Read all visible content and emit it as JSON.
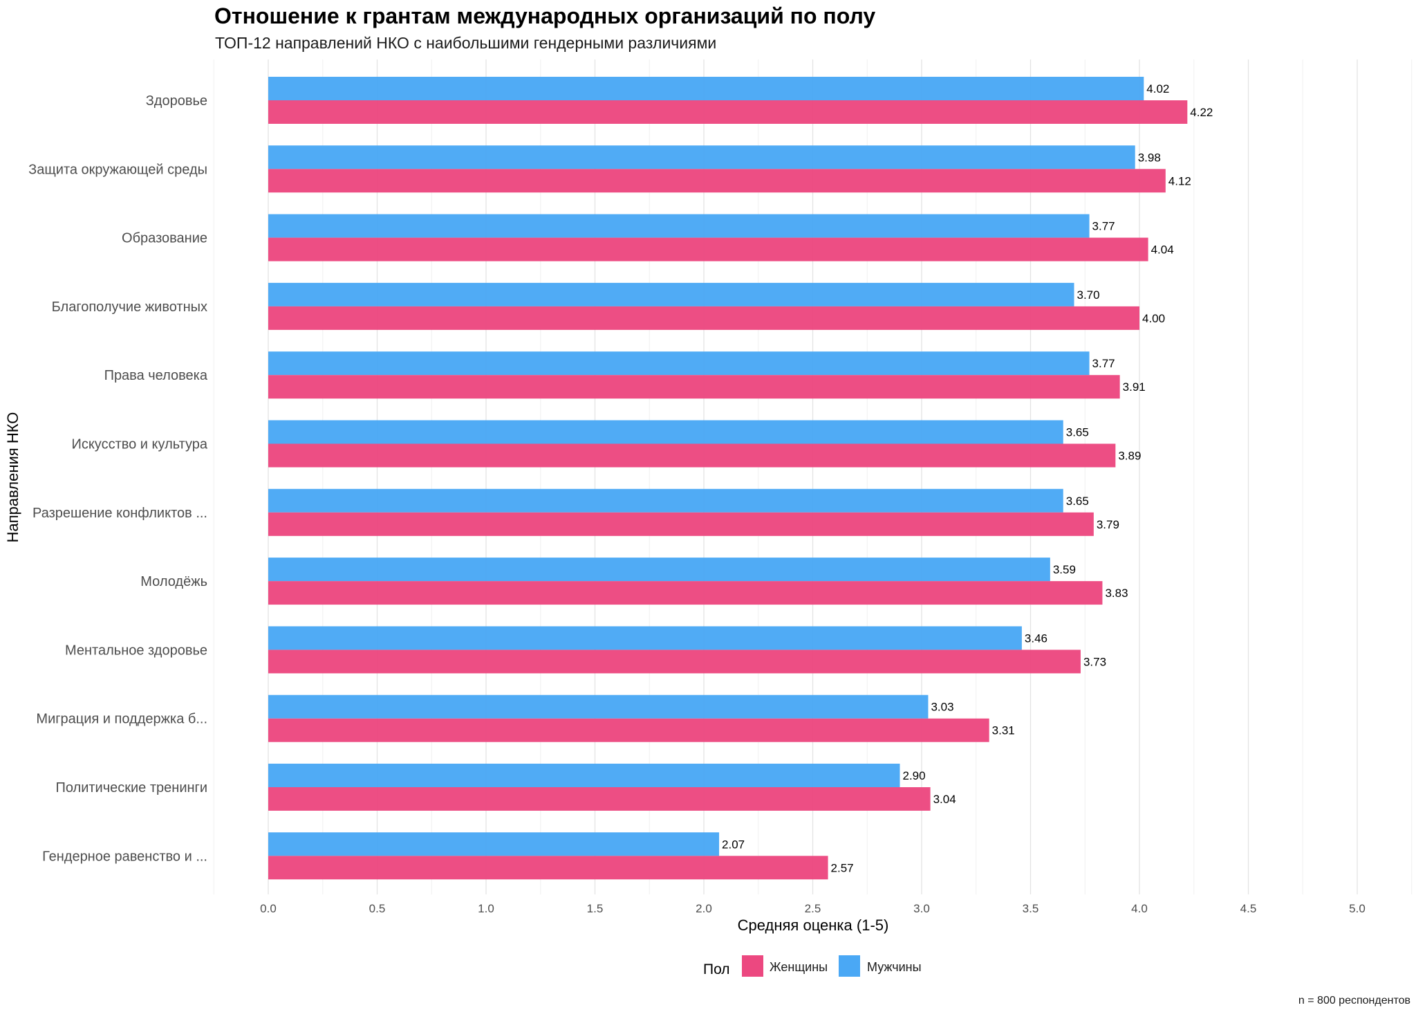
{
  "chart_data": {
    "type": "bar",
    "orientation": "horizontal",
    "title": "Отношение к грантам международных организаций по полу",
    "subtitle": "ТОП-12 направлений НКО с наибольшими гендерными различиями",
    "xlabel": "Средняя оценка (1-5)",
    "ylabel": "Направления НКО",
    "xlim": [
      -0.25,
      5.25
    ],
    "x_ticks": [
      "0.0",
      "0.5",
      "1.0",
      "1.5",
      "2.0",
      "2.5",
      "3.0",
      "3.5",
      "4.0",
      "4.5",
      "5.0"
    ],
    "grid": true,
    "legend_position": "bottom",
    "legend_title": "Пол",
    "categories": [
      "Здоровье",
      "Защита окружающей среды",
      "Образование",
      "Благополучие животных",
      "Права человека",
      "Искусство и культура",
      "Разрешение конфликтов ...",
      "Молодёжь",
      "Ментальное здоровье",
      "Миграция и поддержка б...",
      "Политические тренинги",
      "Гендерное равенство и ..."
    ],
    "series": [
      {
        "name": "Мужчины",
        "color": "#4aa8f5",
        "values": [
          4.02,
          3.98,
          3.77,
          3.7,
          3.77,
          3.65,
          3.65,
          3.59,
          3.46,
          3.03,
          2.9,
          2.07
        ],
        "labels": [
          "4.02",
          "3.98",
          "3.77",
          "3.70",
          "3.77",
          "3.65",
          "3.65",
          "3.59",
          "3.46",
          "3.03",
          "2.90",
          "2.07"
        ]
      },
      {
        "name": "Женщины",
        "color": "#ec4880",
        "values": [
          4.22,
          4.12,
          4.04,
          4.0,
          3.91,
          3.89,
          3.79,
          3.83,
          3.73,
          3.31,
          3.04,
          2.57
        ],
        "labels": [
          "4.22",
          "4.12",
          "4.04",
          "4.00",
          "3.91",
          "3.89",
          "3.79",
          "3.83",
          "3.73",
          "3.31",
          "3.04",
          "2.57"
        ]
      }
    ],
    "legend_order": [
      "Женщины",
      "Мужчины"
    ],
    "caption": "n = 800 респондентов"
  }
}
